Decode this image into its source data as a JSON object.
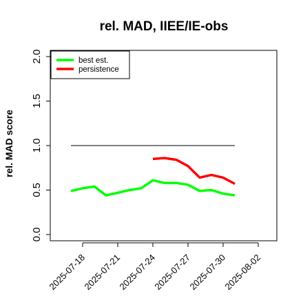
{
  "chart_data": {
    "type": "line",
    "title": "rel. MAD, IIEE/IE-obs",
    "xlabel": "",
    "ylabel": "rel. MAD score",
    "ylim": [
      0.0,
      2.0
    ],
    "y_ticks": [
      "0.0",
      "0.5",
      "1.0",
      "1.5",
      "2.0"
    ],
    "x_ticks": [
      "2025-07-18",
      "2025-07-21",
      "2025-07-24",
      "2025-07-27",
      "2025-07-30",
      "2025-08-02"
    ],
    "x_range": [
      "2025-07-16",
      "2025-08-03"
    ],
    "legend": {
      "position": "top-left"
    },
    "grid": false,
    "series": [
      {
        "name": "best est.",
        "color": "#00ff00",
        "x": [
          "2025-07-17",
          "2025-07-18",
          "2025-07-19",
          "2025-07-20",
          "2025-07-21",
          "2025-07-22",
          "2025-07-23",
          "2025-07-24",
          "2025-07-25",
          "2025-07-26",
          "2025-07-27",
          "2025-07-28",
          "2025-07-29",
          "2025-07-30",
          "2025-07-31"
        ],
        "values": [
          0.49,
          0.52,
          0.54,
          0.44,
          0.47,
          0.5,
          0.52,
          0.61,
          0.58,
          0.58,
          0.56,
          0.49,
          0.5,
          0.46,
          0.44
        ]
      },
      {
        "name": "persistence",
        "color": "#ff0000",
        "x": [
          "2025-07-24",
          "2025-07-25",
          "2025-07-26",
          "2025-07-27",
          "2025-07-28",
          "2025-07-29",
          "2025-07-30",
          "2025-07-31"
        ],
        "values": [
          0.85,
          0.86,
          0.84,
          0.77,
          0.64,
          0.67,
          0.64,
          0.57
        ]
      }
    ],
    "reference_line": {
      "y": 1.0,
      "x_start": "2025-07-17",
      "x_end": "2025-07-31",
      "color": "#555555"
    }
  }
}
